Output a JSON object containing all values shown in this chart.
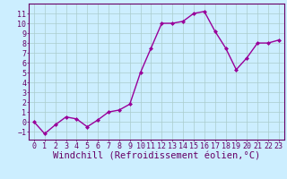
{
  "x": [
    0,
    1,
    2,
    3,
    4,
    5,
    6,
    7,
    8,
    9,
    10,
    11,
    12,
    13,
    14,
    15,
    16,
    17,
    18,
    19,
    20,
    21,
    22,
    23
  ],
  "y": [
    0,
    -1.2,
    -0.3,
    0.5,
    0.3,
    -0.5,
    0.2,
    1.0,
    1.2,
    1.8,
    5.0,
    7.5,
    10.0,
    10.0,
    10.2,
    11.0,
    11.2,
    9.2,
    7.5,
    5.3,
    6.5,
    8.0,
    8.0,
    8.3
  ],
  "line_color": "#990099",
  "marker": "D",
  "marker_size": 2,
  "bg_color": "#cceeff",
  "grid_color": "#aacccc",
  "xlabel": "Windchill (Refroidissement éolien,°C)",
  "xlim": [
    -0.5,
    23.5
  ],
  "ylim": [
    -1.8,
    12.0
  ],
  "yticks": [
    -1,
    0,
    1,
    2,
    3,
    4,
    5,
    6,
    7,
    8,
    9,
    10,
    11
  ],
  "xticks": [
    0,
    1,
    2,
    3,
    4,
    5,
    6,
    7,
    8,
    9,
    10,
    11,
    12,
    13,
    14,
    15,
    16,
    17,
    18,
    19,
    20,
    21,
    22,
    23
  ],
  "axis_color": "#660066",
  "tick_color": "#660066",
  "label_color": "#660066",
  "xlabel_fontsize": 7.5,
  "tick_fontsize": 6.0,
  "linewidth": 1.0
}
